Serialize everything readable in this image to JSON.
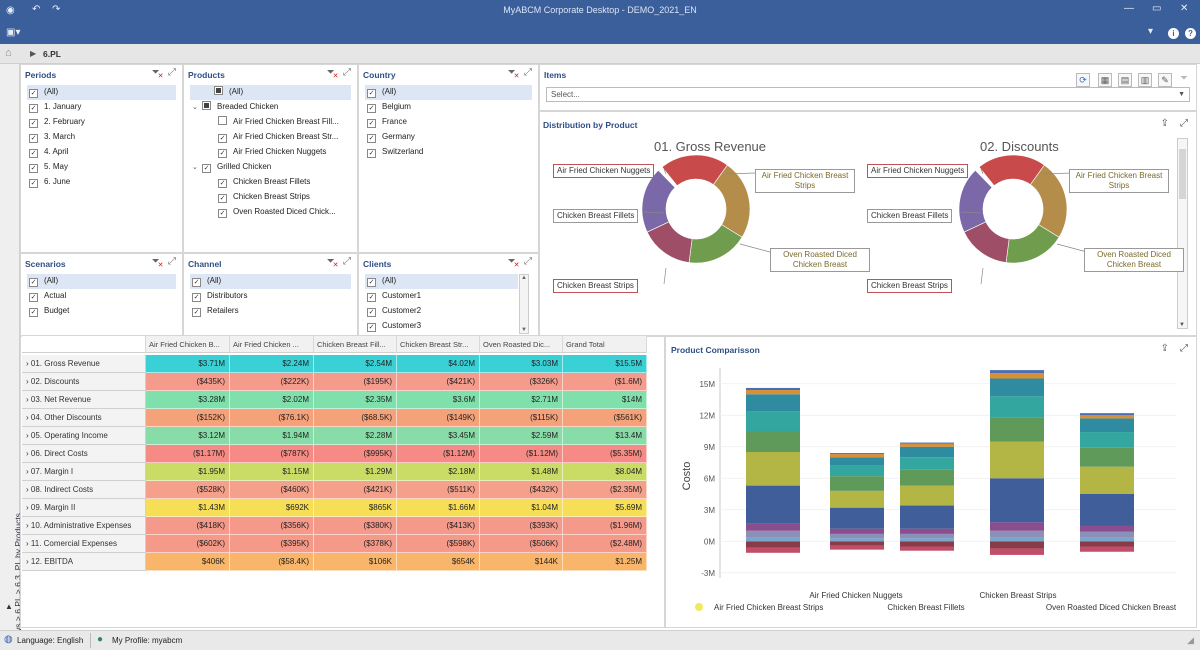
{
  "window": {
    "title": "MyABCM Corporate Desktop - DEMO_2021_EN"
  },
  "nav": {
    "breadcrumb": "6.PL"
  },
  "filters": {
    "periods": {
      "title": "Periods",
      "items": [
        {
          "label": "(All)",
          "state": "checked",
          "selected": true
        },
        {
          "label": "1. January",
          "state": "checked"
        },
        {
          "label": "2. February",
          "state": "checked"
        },
        {
          "label": "3. March",
          "state": "checked"
        },
        {
          "label": "4. April",
          "state": "checked"
        },
        {
          "label": "5. May",
          "state": "checked"
        },
        {
          "label": "6. June",
          "state": "checked"
        }
      ]
    },
    "products": {
      "title": "Products",
      "items": [
        {
          "label": "(All)",
          "state": "partial",
          "selected": true,
          "indent": 0,
          "toggle": ""
        },
        {
          "label": "Breaded Chicken",
          "state": "partial",
          "indent": 0,
          "toggle": "v"
        },
        {
          "label": "Air Fried Chicken Breast Fill...",
          "state": "unchecked",
          "indent": 1,
          "toggle": ""
        },
        {
          "label": "Air Fried Chicken Breast Str...",
          "state": "checked",
          "indent": 1,
          "toggle": ""
        },
        {
          "label": "Air Fried Chicken Nuggets",
          "state": "checked",
          "indent": 1,
          "toggle": ""
        },
        {
          "label": "Grilled Chicken",
          "state": "checked",
          "indent": 0,
          "toggle": "v"
        },
        {
          "label": "Chicken Breast Fillets",
          "state": "checked",
          "indent": 1,
          "toggle": ""
        },
        {
          "label": "Chicken Breast Strips",
          "state": "checked",
          "indent": 1,
          "toggle": ""
        },
        {
          "label": "Oven Roasted Diced Chick...",
          "state": "checked",
          "indent": 1,
          "toggle": ""
        }
      ]
    },
    "country": {
      "title": "Country",
      "items": [
        {
          "label": "(All)",
          "state": "checked",
          "selected": true
        },
        {
          "label": "Belgium",
          "state": "checked"
        },
        {
          "label": "France",
          "state": "checked"
        },
        {
          "label": "Germany",
          "state": "checked"
        },
        {
          "label": "Switzerland",
          "state": "checked"
        }
      ]
    },
    "scenarios": {
      "title": "Scenarios",
      "items": [
        {
          "label": "(All)",
          "state": "checked",
          "selected": true
        },
        {
          "label": "Actual",
          "state": "checked"
        },
        {
          "label": "Budget",
          "state": "checked"
        }
      ]
    },
    "channel": {
      "title": "Channel",
      "items": [
        {
          "label": "(All)",
          "state": "checked",
          "selected": true
        },
        {
          "label": "Distributors",
          "state": "checked"
        },
        {
          "label": "Retailers",
          "state": "checked"
        }
      ]
    },
    "clients": {
      "title": "Clients",
      "items": [
        {
          "label": "(All)",
          "state": "checked",
          "selected": true
        },
        {
          "label": "Customer1",
          "state": "checked"
        },
        {
          "label": "Customer2",
          "state": "checked"
        },
        {
          "label": "Customer3",
          "state": "checked"
        }
      ]
    }
  },
  "items_panel": {
    "title": "Items",
    "placeholder": "Select..."
  },
  "distribution": {
    "title": "Distribution by Product",
    "charts": [
      {
        "title": "01. Gross Revenue",
        "labels": {
          "left_top": "Air Fried Chicken Nuggets",
          "left_mid": "Chicken Breast Fillets",
          "left_bot": "Chicken Breast Strips",
          "right_top": "Air Fried Chicken Breast Strips",
          "right_bot": "Oven Roasted Diced Chicken Breast"
        }
      },
      {
        "title": "02. Discounts",
        "labels": {
          "left_top": "Air Fried Chicken Nuggets",
          "left_mid": "Chicken Breast Fillets",
          "left_bot": "Chicken Breast Strips",
          "right_top": "Air Fried Chicken Breast Strips",
          "right_bot": "Oven Roasted Diced Chicken Breast"
        }
      }
    ],
    "slice_colors": [
      "#c94a4a",
      "#b58d4a",
      "#6f9c4d",
      "#9e4e66",
      "#7a68a8"
    ]
  },
  "pivot": {
    "headers": [
      "Air Fried Chicken B...",
      "Air Fried Chicken ...",
      "Chicken Breast Fill...",
      "Chicken Breast Str...",
      "Oven Roasted Dic...",
      "Grand Total"
    ],
    "rows": [
      {
        "label": "01. Gross Revenue",
        "color": "#39d1d6",
        "values": [
          "$3.71M",
          "$2.24M",
          "$2.54M",
          "$4.02M",
          "$3.03M",
          "$15.5M"
        ]
      },
      {
        "label": "02. Discounts",
        "color": "#f59b8c",
        "values": [
          "($435K)",
          "($222K)",
          "($195K)",
          "($421K)",
          "($326K)",
          "($1.6M)"
        ]
      },
      {
        "label": "03. Net Revenue",
        "color": "#7fe0ac",
        "values": [
          "$3.28M",
          "$2.02M",
          "$2.35M",
          "$3.6M",
          "$2.71M",
          "$14M"
        ]
      },
      {
        "label": "04. Other Discounts",
        "color": "#f5a27a",
        "values": [
          "($152K)",
          "($76.1K)",
          "($68.5K)",
          "($149K)",
          "($115K)",
          "($561K)"
        ]
      },
      {
        "label": "05. Operating Income",
        "color": "#88dca8",
        "values": [
          "$3.12M",
          "$1.94M",
          "$2.28M",
          "$3.45M",
          "$2.59M",
          "$13.4M"
        ]
      },
      {
        "label": "06. Direct Costs",
        "color": "#f58b84",
        "values": [
          "($1.17M)",
          "($787K)",
          "($995K)",
          "($1.12M)",
          "($1.12M)",
          "($5.35M)"
        ]
      },
      {
        "label": "07. Margin I",
        "color": "#cbdc66",
        "values": [
          "$1.95M",
          "$1.15M",
          "$1.29M",
          "$2.18M",
          "$1.48M",
          "$8.04M"
        ]
      },
      {
        "label": "08. Indirect Costs",
        "color": "#f5a08a",
        "values": [
          "($528K)",
          "($460K)",
          "($421K)",
          "($511K)",
          "($432K)",
          "($2.35M)"
        ]
      },
      {
        "label": "09. Margin II",
        "color": "#f7de57",
        "values": [
          "$1.43M",
          "$692K",
          "$865K",
          "$1.66M",
          "$1.04M",
          "$5.69M"
        ]
      },
      {
        "label": "10. Administrative Expenses",
        "color": "#f5998a",
        "values": [
          "($418K)",
          "($356K)",
          "($380K)",
          "($413K)",
          "($393K)",
          "($1.96M)"
        ]
      },
      {
        "label": "11. Comercial Expenses",
        "color": "#f59a88",
        "values": [
          "($602K)",
          "($395K)",
          "($378K)",
          "($598K)",
          "($506K)",
          "($2.48M)"
        ]
      },
      {
        "label": "12. EBITDA",
        "color": "#f9b66a",
        "values": [
          "$406K",
          "($58.4K)",
          "$106K",
          "$654K",
          "$144K",
          "$1.25M"
        ]
      }
    ]
  },
  "comparison": {
    "title": "Product Comparisson",
    "chart_data": {
      "type": "bar",
      "stacked": true,
      "ylabel": "Costo",
      "yticks": [
        "15M",
        "12M",
        "9M",
        "6M",
        "3M",
        "0M",
        "-3M"
      ],
      "ylim": [
        -3.5,
        16.5
      ],
      "categories": [
        "Air Fried Chicken Breast Strips",
        "Air Fried Chicken Nuggets",
        "Chicken Breast Fillets",
        "Chicken Breast Strips",
        "Oven Roasted Diced Chicken Breast"
      ],
      "segment_colors": [
        "#8a3b4a",
        "#c24d68",
        "#7aa6c9",
        "#8c8fb8",
        "#8a4d8e",
        "#3f5e9a",
        "#b3b545",
        "#5f9a5a",
        "#33a6a0",
        "#2f8ca0",
        "#d98f33",
        "#4b6eb5"
      ],
      "series_values": [
        [
          -0.6,
          -0.5,
          0.4,
          0.6,
          0.7,
          3.6,
          3.2,
          2.0,
          1.9,
          1.6,
          0.4,
          0.2
        ],
        [
          -0.4,
          -0.4,
          0.3,
          0.4,
          0.5,
          2.0,
          1.6,
          1.4,
          1.0,
          0.8,
          0.3,
          0.1
        ],
        [
          -0.5,
          -0.4,
          0.3,
          0.4,
          0.5,
          2.2,
          1.9,
          1.5,
          1.2,
          1.0,
          0.3,
          0.1
        ],
        [
          -0.7,
          -0.6,
          0.4,
          0.6,
          0.8,
          4.2,
          3.5,
          2.3,
          2.0,
          1.7,
          0.5,
          0.3
        ],
        [
          -0.5,
          -0.5,
          0.4,
          0.5,
          0.6,
          3.0,
          2.6,
          1.8,
          1.5,
          1.3,
          0.3,
          0.2
        ]
      ],
      "legend": [
        "Air Fried Chicken Breast Strips"
      ],
      "legend_color": "#f2e85a"
    }
  },
  "sidebar": {
    "path": "Views > 6.PL > 6.3. PL by Products"
  },
  "status": {
    "language": "Language: English",
    "profile": "My Profile: myabcm"
  }
}
